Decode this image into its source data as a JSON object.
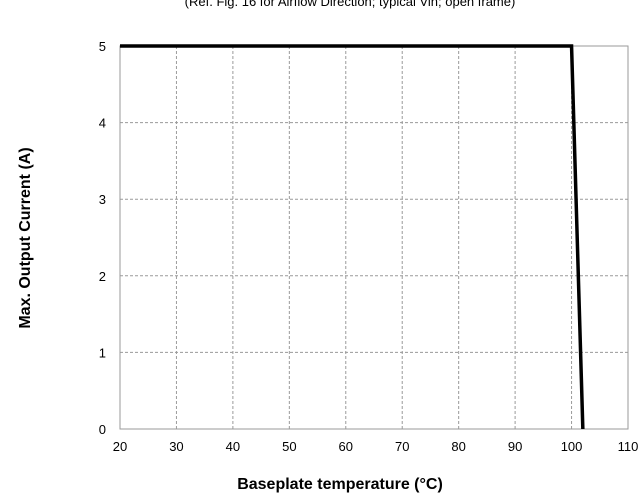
{
  "caption": "(Ref. Fig. 16 for Airflow Direction; typical Vin; open frame)",
  "chart_data": {
    "type": "line",
    "xlabel": "Baseplate temperature (°C)",
    "ylabel": "Max. Output Current (A)",
    "xlim": [
      20,
      110
    ],
    "ylim": [
      0,
      5
    ],
    "x_ticks": [
      20,
      30,
      40,
      50,
      60,
      70,
      80,
      90,
      100,
      110
    ],
    "y_ticks": [
      0,
      1,
      2,
      3,
      4,
      5
    ],
    "x_tick_labels": [
      "20",
      "30",
      "40",
      "50",
      "60",
      "70",
      "80",
      "90",
      "100",
      "110"
    ],
    "y_tick_labels": [
      "0",
      "1",
      "2",
      "3",
      "4",
      "5"
    ],
    "grid": true,
    "series": [
      {
        "x": [
          20,
          100,
          102
        ],
        "y": [
          5,
          5,
          0
        ],
        "color": "#000000"
      }
    ]
  }
}
